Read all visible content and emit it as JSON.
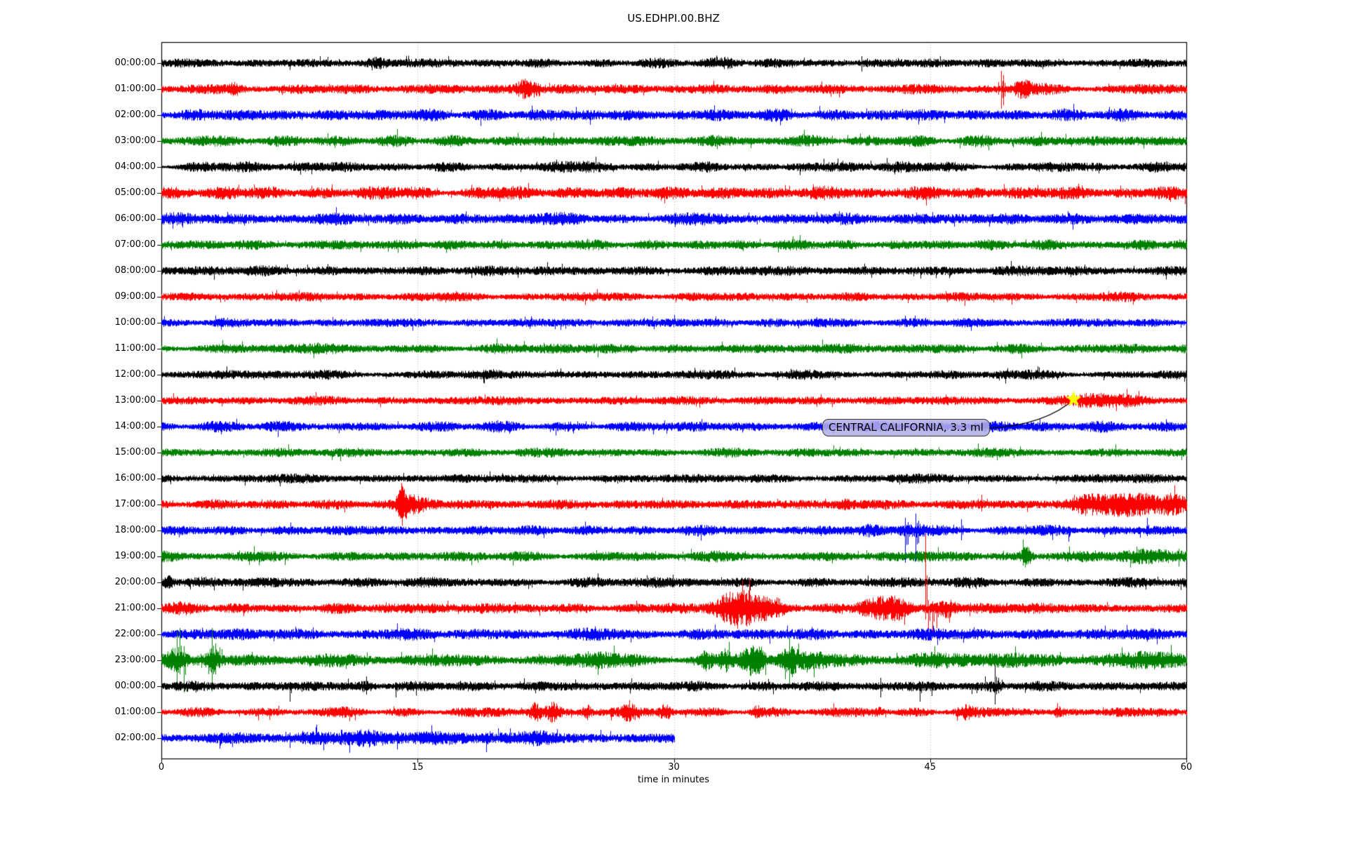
{
  "title": "US.EDHPI.00.BHZ",
  "xlabel": "time in minutes",
  "annotation": {
    "text": "CENTRAL CALIFORNIA, 3.3 ml",
    "marker": "star",
    "star_color": "#ffff00",
    "target_row": 13,
    "target_minute": 53.4
  },
  "colors": {
    "trace_black": "#000000",
    "trace_red": "#ff0000",
    "trace_blue": "#0000ff",
    "trace_green": "#008000",
    "grid": "#b0b0b0",
    "frame": "#000000",
    "annotation_bg": "#b2aee7"
  },
  "chart_data": {
    "type": "line",
    "xlabel": "time in minutes",
    "x_ticks": [
      "0",
      "15",
      "30",
      "45",
      "60"
    ],
    "x_tick_values": [
      0,
      15,
      30,
      45,
      60
    ],
    "x_range": [
      0,
      60
    ],
    "grid_minutes": [
      15,
      30,
      45
    ],
    "grid_on": true,
    "rows": [
      {
        "label": "00:00:00",
        "color": "#000000",
        "base": 5,
        "end_min": 60,
        "bursts": [
          [
            12.6,
            4,
            0.5
          ],
          [
            33,
            3,
            0.8
          ]
        ],
        "spikes": [
          [
            10.4,
            6,
            5
          ],
          [
            12.8,
            8,
            9
          ],
          [
            22,
            5,
            5
          ],
          [
            41.0,
            10,
            12
          ],
          [
            41.3,
            7,
            6
          ],
          [
            58,
            5,
            7
          ]
        ]
      },
      {
        "label": "01:00:00",
        "color": "#ff0000",
        "base": 5.5,
        "end_min": 60,
        "bursts": [
          [
            21.2,
            9,
            0.4
          ],
          [
            21.9,
            7,
            0.35
          ],
          [
            50.4,
            8,
            0.5
          ],
          [
            4.3,
            4,
            0.3
          ]
        ],
        "spikes": [
          [
            49.0,
            10,
            8
          ],
          [
            49.15,
            26,
            28
          ],
          [
            49.3,
            20,
            23
          ]
        ]
      },
      {
        "label": "02:00:00",
        "color": "#0000ff",
        "base": 6.5,
        "end_min": 60,
        "bursts": [],
        "spikes": []
      },
      {
        "label": "03:00:00",
        "color": "#008000",
        "base": 6,
        "end_min": 60,
        "bursts": [],
        "spikes": []
      },
      {
        "label": "04:00:00",
        "color": "#000000",
        "base": 5.5,
        "end_min": 60,
        "bursts": [],
        "spikes": []
      },
      {
        "label": "05:00:00",
        "color": "#ff0000",
        "base": 7,
        "end_min": 60,
        "bursts": [],
        "spikes": []
      },
      {
        "label": "06:00:00",
        "color": "#0000ff",
        "base": 6.5,
        "end_min": 60,
        "bursts": [],
        "spikes": []
      },
      {
        "label": "07:00:00",
        "color": "#008000",
        "base": 5.5,
        "end_min": 60,
        "bursts": [],
        "spikes": []
      },
      {
        "label": "08:00:00",
        "color": "#000000",
        "base": 5.5,
        "end_min": 60,
        "bursts": [],
        "spikes": []
      },
      {
        "label": "09:00:00",
        "color": "#ff0000",
        "base": 5,
        "end_min": 60,
        "bursts": [],
        "spikes": []
      },
      {
        "label": "10:00:00",
        "color": "#0000ff",
        "base": 5,
        "end_min": 60,
        "bursts": [],
        "spikes": []
      },
      {
        "label": "11:00:00",
        "color": "#008000",
        "base": 5.5,
        "end_min": 60,
        "bursts": [],
        "spikes": []
      },
      {
        "label": "12:00:00",
        "color": "#000000",
        "base": 5,
        "end_min": 60,
        "bursts": [],
        "spikes": []
      },
      {
        "label": "13:00:00",
        "color": "#ff0000",
        "base": 5,
        "end_min": 60,
        "bursts": [
          [
            54.3,
            4,
            1.2
          ],
          [
            56,
            3,
            2
          ]
        ],
        "spikes": []
      },
      {
        "label": "14:00:00",
        "color": "#0000ff",
        "base": 5.5,
        "end_min": 60,
        "bursts": [
          [
            49,
            3,
            1
          ]
        ],
        "spikes": []
      },
      {
        "label": "15:00:00",
        "color": "#008000",
        "base": 5,
        "end_min": 60,
        "bursts": [],
        "spikes": []
      },
      {
        "label": "16:00:00",
        "color": "#000000",
        "base": 5,
        "end_min": 60,
        "bursts": [],
        "spikes": []
      },
      {
        "label": "17:00:00",
        "color": "#ff0000",
        "base": 5.5,
        "end_min": 60,
        "bursts": [
          [
            14.1,
            18,
            0.25
          ],
          [
            14.5,
            8,
            0.6
          ],
          [
            15.3,
            4,
            0.8
          ],
          [
            40,
            3,
            0.5
          ],
          [
            54.3,
            9,
            0.9
          ],
          [
            55.8,
            9,
            0.9
          ],
          [
            57.3,
            10,
            1.1
          ],
          [
            59.2,
            10,
            0.8
          ]
        ],
        "spikes": [
          [
            14.1,
            22,
            20
          ],
          [
            47.8,
            8,
            6
          ],
          [
            48.0,
            14,
            10
          ],
          [
            55.9,
            14,
            8
          ],
          [
            57.2,
            12,
            14
          ],
          [
            58.8,
            14,
            10
          ],
          [
            59.5,
            12,
            12
          ]
        ]
      },
      {
        "label": "18:00:00",
        "color": "#0000ff",
        "base": 5.5,
        "end_min": 60,
        "bursts": [
          [
            41.5,
            4,
            0.6
          ],
          [
            44,
            4,
            0.8
          ]
        ],
        "spikes": [
          [
            43.55,
            18,
            46
          ],
          [
            43.7,
            12,
            20
          ],
          [
            44.15,
            24,
            44
          ],
          [
            44.3,
            14,
            18
          ],
          [
            46.8,
            16,
            14
          ],
          [
            50.6,
            8,
            6
          ],
          [
            53.1,
            6,
            16
          ],
          [
            57.7,
            18,
            8
          ]
        ]
      },
      {
        "label": "19:00:00",
        "color": "#008000",
        "base": 5.5,
        "end_min": 60,
        "bursts": [
          [
            44.5,
            3,
            0.5
          ],
          [
            50.6,
            10,
            0.3
          ],
          [
            57.5,
            4,
            2.5
          ]
        ],
        "spikes": [
          [
            30.5,
            7,
            5
          ],
          [
            50.6,
            13,
            8
          ]
        ]
      },
      {
        "label": "20:00:00",
        "color": "#000000",
        "base": 5.5,
        "end_min": 60,
        "bursts": [
          [
            0.4,
            6,
            0.3
          ]
        ],
        "spikes": [
          [
            0.45,
            10,
            9
          ],
          [
            5.5,
            5,
            4
          ],
          [
            47.2,
            6,
            5
          ],
          [
            58.6,
            6,
            6
          ]
        ]
      },
      {
        "label": "21:00:00",
        "color": "#ff0000",
        "base": 6,
        "end_min": 60,
        "bursts": [
          [
            33.3,
            8,
            0.8
          ],
          [
            34,
            6,
            1.5
          ],
          [
            34.3,
            11,
            0.6
          ],
          [
            35.3,
            8,
            0.5
          ],
          [
            36,
            6,
            0.4
          ],
          [
            41.8,
            9,
            1.2
          ],
          [
            43.2,
            8,
            0.7
          ],
          [
            46,
            7,
            0.5
          ]
        ],
        "spikes": [
          [
            33.9,
            12,
            10
          ],
          [
            34.6,
            10,
            12
          ],
          [
            44.72,
            104,
            16
          ],
          [
            44.9,
            12,
            40
          ],
          [
            45.15,
            10,
            42
          ],
          [
            45.4,
            8,
            28
          ],
          [
            49.5,
            8,
            6
          ]
        ]
      },
      {
        "label": "22:00:00",
        "color": "#0000ff",
        "base": 6.5,
        "end_min": 60,
        "bursts": [],
        "spikes": [
          [
            32.5,
            7,
            5
          ],
          [
            48,
            6,
            5
          ]
        ]
      },
      {
        "label": "23:00:00",
        "color": "#008000",
        "base": 7,
        "end_min": 60,
        "bursts": [
          [
            0.8,
            10,
            0.5
          ],
          [
            3.0,
            10,
            0.4
          ],
          [
            25.5,
            4,
            1
          ],
          [
            31.9,
            8,
            0.4
          ],
          [
            33,
            8,
            0.3
          ],
          [
            34.5,
            12,
            0.5
          ],
          [
            35,
            10,
            0.4
          ],
          [
            36.8,
            10,
            0.5
          ],
          [
            38,
            5,
            1.2
          ],
          [
            45,
            4,
            2
          ],
          [
            52,
            4,
            1
          ],
          [
            58,
            5,
            2
          ]
        ],
        "spikes": [
          [
            0.9,
            42,
            40
          ],
          [
            1.05,
            46,
            20
          ],
          [
            1.3,
            20,
            46
          ],
          [
            2.95,
            46,
            44
          ],
          [
            3.15,
            24,
            20
          ],
          [
            3.55,
            16,
            8
          ],
          [
            5.3,
            12,
            6
          ],
          [
            34.5,
            18,
            14
          ],
          [
            35,
            14,
            16
          ],
          [
            36.75,
            32,
            36
          ],
          [
            36.9,
            20,
            24
          ],
          [
            49.5,
            10,
            8
          ],
          [
            55.5,
            10,
            10
          ]
        ]
      },
      {
        "label": "00:00:00",
        "color": "#000000",
        "base": 5.5,
        "end_min": 60,
        "bursts": [
          [
            12,
            3,
            0.5
          ],
          [
            48.8,
            3,
            0.5
          ]
        ],
        "spikes": [
          [
            2,
            7,
            9
          ],
          [
            7.5,
            6,
            22
          ],
          [
            8.2,
            6,
            8
          ],
          [
            12,
            14,
            12
          ],
          [
            13.7,
            6,
            16
          ],
          [
            17.5,
            8,
            6
          ],
          [
            21,
            7,
            4
          ],
          [
            42.1,
            12,
            16
          ],
          [
            44.4,
            6,
            22
          ],
          [
            45.1,
            5,
            14
          ],
          [
            48.2,
            14,
            6
          ],
          [
            48.8,
            30,
            26
          ],
          [
            49.0,
            12,
            10
          ],
          [
            52,
            6,
            5
          ]
        ]
      },
      {
        "label": "01:00:00",
        "color": "#ff0000",
        "base": 5,
        "end_min": 60,
        "bursts": [
          [
            21.9,
            10,
            0.35
          ],
          [
            22.9,
            9,
            0.4
          ],
          [
            24.9,
            7,
            0.25
          ],
          [
            27.4,
            10,
            0.35
          ],
          [
            29.5,
            7,
            0.35
          ],
          [
            34.8,
            5,
            0.3
          ],
          [
            42,
            4,
            0.4
          ],
          [
            47,
            5,
            0.4
          ],
          [
            52.5,
            4,
            0.3
          ]
        ],
        "spikes": [
          [
            21.9,
            12,
            10
          ],
          [
            27.4,
            14,
            8
          ]
        ]
      },
      {
        "label": "02:00:00",
        "color": "#0000ff",
        "base": 6,
        "end_min": 30,
        "bursts": [
          [
            9,
            5,
            1
          ],
          [
            12,
            5,
            1.5
          ],
          [
            17,
            4,
            2
          ],
          [
            22,
            5,
            1
          ]
        ],
        "spikes": [
          [
            7.5,
            8,
            14
          ],
          [
            10.5,
            12,
            10
          ],
          [
            13.8,
            10,
            16
          ],
          [
            19.0,
            6,
            20
          ],
          [
            19.7,
            14,
            6
          ],
          [
            20.4,
            14,
            6
          ],
          [
            25.7,
            12,
            5
          ]
        ]
      }
    ]
  }
}
